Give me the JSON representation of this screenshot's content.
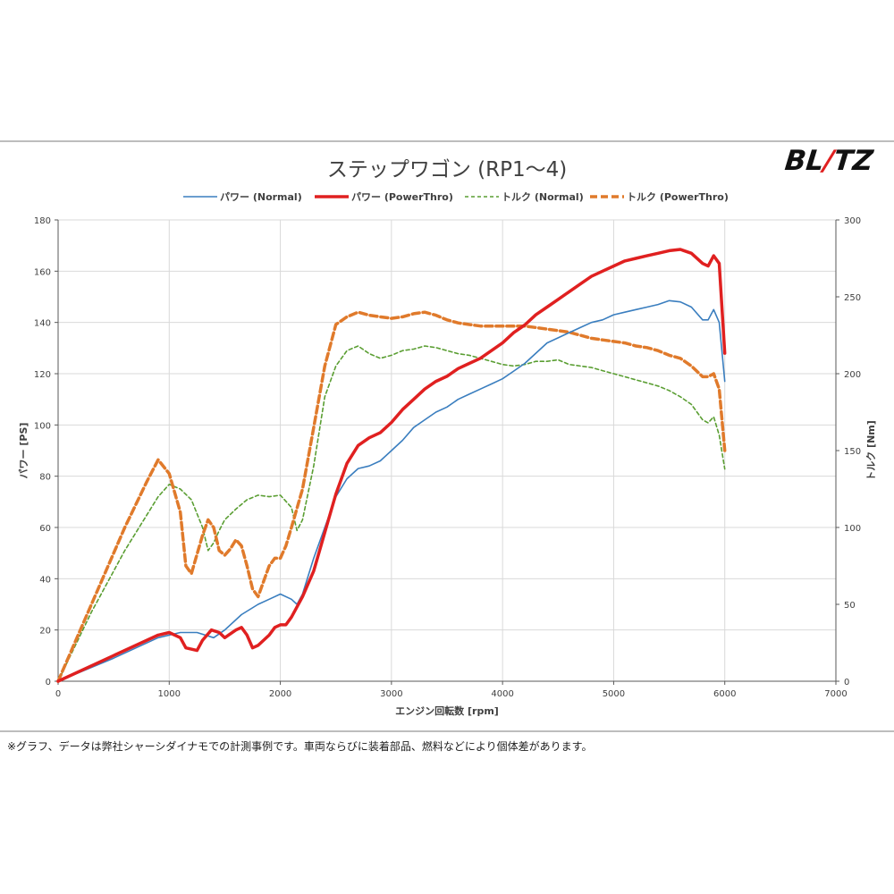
{
  "title": "ステップワゴン (RP1～4)",
  "brand": {
    "prefix": "BL",
    "bolt": "/",
    "suffix": "TZ"
  },
  "footnote": "※グラフ、データは弊社シャーシダイナモでの計測事例です。車両ならびに装着部品、燃料などにより個体差があります。",
  "chart_data": {
    "type": "line",
    "title": "ステップワゴン (RP1～4)",
    "xlabel": "エンジン回転数 [rpm]",
    "ylabel": "パワー [PS]",
    "y2label": "トルク [Nm]",
    "xlim": [
      0,
      7000
    ],
    "ylim": [
      0,
      180
    ],
    "y2lim": [
      0,
      300
    ],
    "x_ticks": [
      0,
      1000,
      2000,
      3000,
      4000,
      5000,
      6000,
      7000
    ],
    "y_ticks": [
      0,
      20,
      40,
      60,
      80,
      100,
      120,
      140,
      160,
      180
    ],
    "y2_ticks": [
      0,
      50,
      100,
      150,
      200,
      250,
      300
    ],
    "grid": true,
    "legend_position": "top",
    "series": [
      {
        "name": "パワー (Normal)",
        "axis": "left",
        "color": "#3a7ebf",
        "style": "solid-thin",
        "points": [
          [
            0,
            0
          ],
          [
            500,
            9
          ],
          [
            900,
            17
          ],
          [
            1100,
            19
          ],
          [
            1250,
            19
          ],
          [
            1400,
            17
          ],
          [
            1500,
            20
          ],
          [
            1650,
            26
          ],
          [
            1800,
            30
          ],
          [
            1900,
            32
          ],
          [
            2000,
            34
          ],
          [
            2100,
            32
          ],
          [
            2150,
            30
          ],
          [
            2200,
            34
          ],
          [
            2300,
            48
          ],
          [
            2400,
            60
          ],
          [
            2500,
            72
          ],
          [
            2600,
            79
          ],
          [
            2700,
            83
          ],
          [
            2800,
            84
          ],
          [
            2900,
            86
          ],
          [
            3000,
            90
          ],
          [
            3100,
            94
          ],
          [
            3200,
            99
          ],
          [
            3300,
            102
          ],
          [
            3400,
            105
          ],
          [
            3500,
            107
          ],
          [
            3600,
            110
          ],
          [
            3700,
            112
          ],
          [
            3800,
            114
          ],
          [
            3900,
            116
          ],
          [
            4000,
            118
          ],
          [
            4100,
            121
          ],
          [
            4200,
            124
          ],
          [
            4300,
            128
          ],
          [
            4400,
            132
          ],
          [
            4500,
            134
          ],
          [
            4600,
            136
          ],
          [
            4700,
            138
          ],
          [
            4800,
            140
          ],
          [
            4900,
            141
          ],
          [
            5000,
            143
          ],
          [
            5100,
            144
          ],
          [
            5200,
            145
          ],
          [
            5300,
            146
          ],
          [
            5400,
            147
          ],
          [
            5500,
            148.5
          ],
          [
            5600,
            148
          ],
          [
            5700,
            146
          ],
          [
            5800,
            141
          ],
          [
            5850,
            141
          ],
          [
            5900,
            145
          ],
          [
            5950,
            140
          ],
          [
            6000,
            117
          ]
        ]
      },
      {
        "name": "パワー (PowerThro)",
        "axis": "left",
        "color": "#e02020",
        "style": "solid-thick",
        "points": [
          [
            0,
            0
          ],
          [
            500,
            10
          ],
          [
            900,
            18
          ],
          [
            1000,
            19
          ],
          [
            1100,
            17
          ],
          [
            1150,
            13
          ],
          [
            1250,
            12
          ],
          [
            1300,
            16
          ],
          [
            1380,
            20
          ],
          [
            1450,
            19
          ],
          [
            1500,
            17
          ],
          [
            1600,
            20
          ],
          [
            1650,
            21
          ],
          [
            1700,
            18
          ],
          [
            1750,
            13
          ],
          [
            1800,
            14
          ],
          [
            1900,
            18
          ],
          [
            1950,
            21
          ],
          [
            2000,
            22
          ],
          [
            2050,
            22
          ],
          [
            2100,
            25
          ],
          [
            2200,
            33
          ],
          [
            2300,
            43
          ],
          [
            2400,
            58
          ],
          [
            2500,
            73
          ],
          [
            2600,
            85
          ],
          [
            2700,
            92
          ],
          [
            2800,
            95
          ],
          [
            2900,
            97
          ],
          [
            3000,
            101
          ],
          [
            3100,
            106
          ],
          [
            3200,
            110
          ],
          [
            3300,
            114
          ],
          [
            3400,
            117
          ],
          [
            3500,
            119
          ],
          [
            3600,
            122
          ],
          [
            3700,
            124
          ],
          [
            3800,
            126
          ],
          [
            3900,
            129
          ],
          [
            4000,
            132
          ],
          [
            4100,
            136
          ],
          [
            4200,
            139
          ],
          [
            4300,
            143
          ],
          [
            4400,
            146
          ],
          [
            4500,
            149
          ],
          [
            4600,
            152
          ],
          [
            4700,
            155
          ],
          [
            4800,
            158
          ],
          [
            4900,
            160
          ],
          [
            5000,
            162
          ],
          [
            5100,
            164
          ],
          [
            5200,
            165
          ],
          [
            5300,
            166
          ],
          [
            5400,
            167
          ],
          [
            5500,
            168
          ],
          [
            5600,
            168.5
          ],
          [
            5700,
            167
          ],
          [
            5800,
            163
          ],
          [
            5850,
            162
          ],
          [
            5900,
            166
          ],
          [
            5950,
            163
          ],
          [
            6000,
            128
          ]
        ]
      },
      {
        "name": "トルク (Normal)",
        "axis": "right",
        "color": "#5a9e32",
        "style": "dashed-thin",
        "points": [
          [
            0,
            0
          ],
          [
            300,
            45
          ],
          [
            600,
            85
          ],
          [
            900,
            120
          ],
          [
            1000,
            128
          ],
          [
            1100,
            125
          ],
          [
            1200,
            118
          ],
          [
            1300,
            100
          ],
          [
            1350,
            85
          ],
          [
            1400,
            90
          ],
          [
            1450,
            98
          ],
          [
            1500,
            105
          ],
          [
            1600,
            112
          ],
          [
            1700,
            118
          ],
          [
            1800,
            121
          ],
          [
            1900,
            120
          ],
          [
            2000,
            121
          ],
          [
            2100,
            113
          ],
          [
            2150,
            98
          ],
          [
            2200,
            105
          ],
          [
            2300,
            140
          ],
          [
            2400,
            185
          ],
          [
            2500,
            205
          ],
          [
            2600,
            215
          ],
          [
            2700,
            218
          ],
          [
            2800,
            213
          ],
          [
            2900,
            210
          ],
          [
            3000,
            212
          ],
          [
            3100,
            215
          ],
          [
            3200,
            216
          ],
          [
            3300,
            218
          ],
          [
            3400,
            217
          ],
          [
            3500,
            215
          ],
          [
            3600,
            213
          ],
          [
            3700,
            212
          ],
          [
            3800,
            210
          ],
          [
            3900,
            208
          ],
          [
            4000,
            206
          ],
          [
            4100,
            205
          ],
          [
            4200,
            206
          ],
          [
            4300,
            208
          ],
          [
            4400,
            208
          ],
          [
            4500,
            209
          ],
          [
            4600,
            206
          ],
          [
            4700,
            205
          ],
          [
            4800,
            204
          ],
          [
            4900,
            202
          ],
          [
            5000,
            200
          ],
          [
            5100,
            198
          ],
          [
            5200,
            196
          ],
          [
            5300,
            194
          ],
          [
            5400,
            192
          ],
          [
            5500,
            189
          ],
          [
            5600,
            185
          ],
          [
            5700,
            180
          ],
          [
            5800,
            170
          ],
          [
            5850,
            168
          ],
          [
            5900,
            172
          ],
          [
            5950,
            160
          ],
          [
            6000,
            138
          ]
        ]
      },
      {
        "name": "トルク (PowerThro)",
        "axis": "right",
        "color": "#e07a2b",
        "style": "dashed-thick",
        "points": [
          [
            0,
            0
          ],
          [
            300,
            50
          ],
          [
            600,
            100
          ],
          [
            800,
            130
          ],
          [
            900,
            144
          ],
          [
            1000,
            135
          ],
          [
            1100,
            110
          ],
          [
            1150,
            75
          ],
          [
            1200,
            70
          ],
          [
            1300,
            95
          ],
          [
            1350,
            105
          ],
          [
            1400,
            100
          ],
          [
            1450,
            85
          ],
          [
            1500,
            82
          ],
          [
            1550,
            86
          ],
          [
            1600,
            92
          ],
          [
            1650,
            88
          ],
          [
            1700,
            75
          ],
          [
            1750,
            60
          ],
          [
            1800,
            55
          ],
          [
            1900,
            75
          ],
          [
            1950,
            80
          ],
          [
            2000,
            80
          ],
          [
            2050,
            88
          ],
          [
            2100,
            100
          ],
          [
            2200,
            125
          ],
          [
            2300,
            165
          ],
          [
            2400,
            205
          ],
          [
            2500,
            232
          ],
          [
            2600,
            237
          ],
          [
            2700,
            240
          ],
          [
            2800,
            238
          ],
          [
            2900,
            237
          ],
          [
            3000,
            236
          ],
          [
            3100,
            237
          ],
          [
            3200,
            239
          ],
          [
            3300,
            240
          ],
          [
            3400,
            238
          ],
          [
            3500,
            235
          ],
          [
            3600,
            233
          ],
          [
            3700,
            232
          ],
          [
            3800,
            231
          ],
          [
            3900,
            231
          ],
          [
            4000,
            231
          ],
          [
            4100,
            231
          ],
          [
            4200,
            231
          ],
          [
            4300,
            230
          ],
          [
            4400,
            229
          ],
          [
            4500,
            228
          ],
          [
            4600,
            227
          ],
          [
            4700,
            225
          ],
          [
            4800,
            223
          ],
          [
            4900,
            222
          ],
          [
            5000,
            221
          ],
          [
            5100,
            220
          ],
          [
            5200,
            218
          ],
          [
            5300,
            217
          ],
          [
            5400,
            215
          ],
          [
            5500,
            212
          ],
          [
            5600,
            210
          ],
          [
            5700,
            205
          ],
          [
            5800,
            198
          ],
          [
            5850,
            198
          ],
          [
            5900,
            200
          ],
          [
            5950,
            190
          ],
          [
            6000,
            150
          ]
        ]
      }
    ]
  }
}
